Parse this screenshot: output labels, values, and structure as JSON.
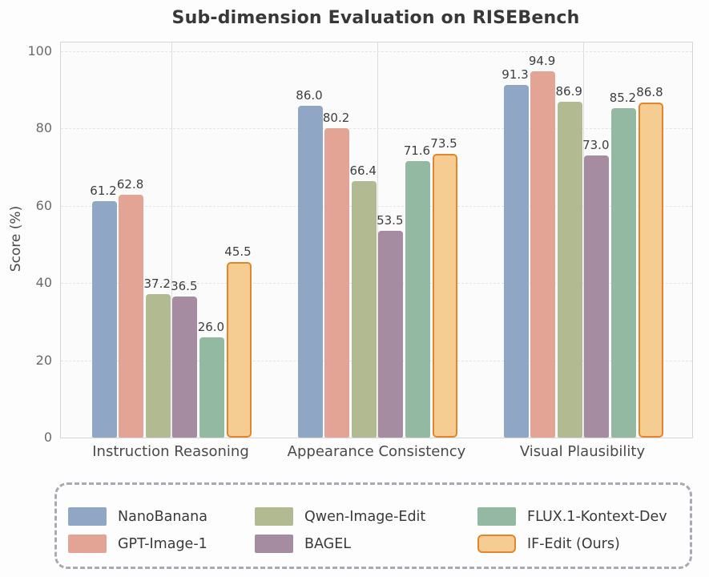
{
  "page": {
    "background_color": "#fdfdfd",
    "plot_background_color": "#fbfbfb",
    "title_color": "#383838",
    "tick_label_color": "#6b6b6b",
    "axis_label_color": "#4a4a4a",
    "value_label_color": "#3e3e3e",
    "spine_color": "#d6d6da",
    "legend_border_color": "#a7aab1"
  },
  "chart_data": {
    "type": "bar",
    "title": "Sub-dimension Evaluation on RISEBench",
    "xlabel": "",
    "ylabel": "Score (%)",
    "ylim": [
      0,
      102.3
    ],
    "yticks": [
      0,
      20,
      40,
      60,
      80,
      100
    ],
    "grid": "horizontal dashed gridlines at yticks; vertical solid gridlines at group centers",
    "legend_position": "bottom, 3 columns, dashed rounded border",
    "value_labels": "shown above each bar, 1 decimal",
    "categories": [
      "Instruction Reasoning",
      "Appearance Consistency",
      "Visual Plausibility"
    ],
    "series": [
      {
        "name": "NanoBanana",
        "color": "#8fa6c4",
        "values": [
          61.2,
          86.0,
          91.3
        ]
      },
      {
        "name": "GPT-Image-1",
        "color": "#e3a495",
        "values": [
          62.8,
          80.2,
          94.9
        ]
      },
      {
        "name": "Qwen-Image-Edit",
        "color": "#b2ba92",
        "values": [
          37.2,
          66.4,
          86.9
        ]
      },
      {
        "name": "BAGEL",
        "color": "#a68ca1",
        "values": [
          36.5,
          53.5,
          73.0
        ]
      },
      {
        "name": "FLUX.1-Kontext-Dev",
        "color": "#93b9a3",
        "values": [
          26.0,
          71.6,
          85.2
        ]
      },
      {
        "name": "IF-Edit (Ours)",
        "color": "#f5cc91",
        "border_color": "#e2862b",
        "highlighted": true,
        "values": [
          45.5,
          73.5,
          86.8
        ]
      }
    ]
  }
}
